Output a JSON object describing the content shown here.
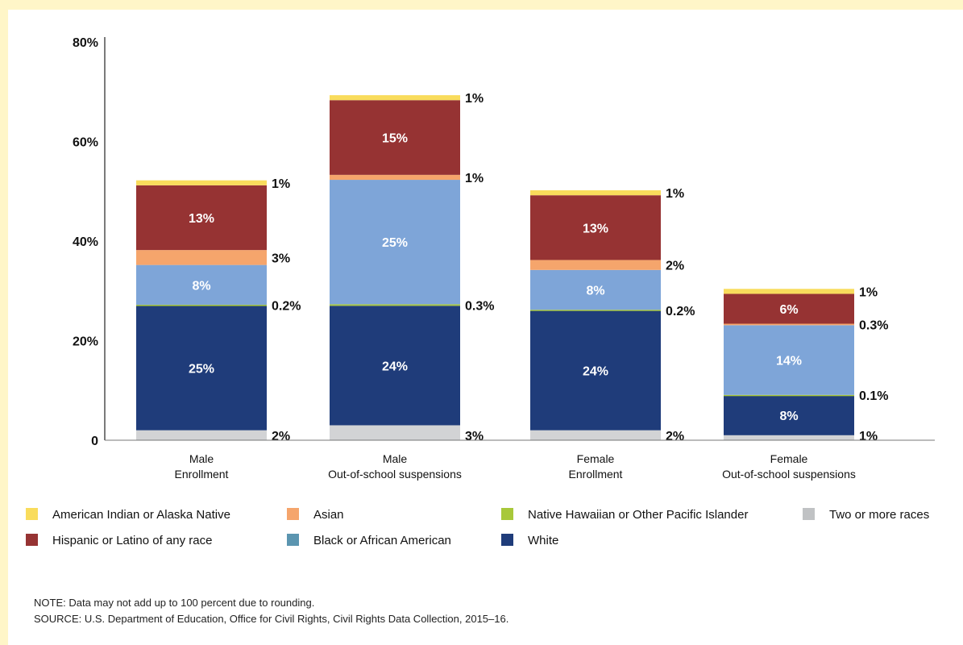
{
  "chart_data": {
    "type": "bar",
    "stacked": true,
    "yaxis": {
      "ylim": [
        0,
        80
      ],
      "ticks": [
        0,
        20,
        40,
        60,
        80
      ],
      "tick_labels": [
        "0",
        "20%",
        "40%",
        "60%",
        "80%"
      ]
    },
    "categories": [
      [
        "Male",
        "Enrollment"
      ],
      [
        "Male",
        "Out-of-school suspensions"
      ],
      [
        "Female",
        "Enrollment"
      ],
      [
        "Female",
        "Out-of-school suspensions"
      ]
    ],
    "series": [
      {
        "name": "Two or more races",
        "color": "#d2d3d5",
        "values": [
          2,
          3,
          2,
          1
        ],
        "labels": [
          "2%",
          "3%",
          "2%",
          "1%"
        ],
        "label_pos": "outside"
      },
      {
        "name": "White",
        "color": "#1f3c7a",
        "values": [
          25,
          24,
          24,
          8
        ],
        "labels": [
          "25%",
          "24%",
          "24%",
          "8%"
        ],
        "label_pos": "inside"
      },
      {
        "name": "Native Hawaiian or Other Pacific Islander",
        "color": "#a8c83a",
        "values": [
          0.2,
          0.3,
          0.2,
          0.1
        ],
        "labels": [
          "0.2%",
          "0.3%",
          "0.2%",
          "0.1%"
        ],
        "label_pos": "outside"
      },
      {
        "name": "Black or African American",
        "color": "#7ea5d8",
        "values": [
          8,
          25,
          8,
          14
        ],
        "labels": [
          "8%",
          "25%",
          "8%",
          "14%"
        ],
        "label_pos": "inside"
      },
      {
        "name": "Asian",
        "color": "#f5a56c",
        "values": [
          3,
          1,
          2,
          0.3
        ],
        "labels": [
          "3%",
          "1%",
          "2%",
          "0.3%"
        ],
        "label_pos": "outside"
      },
      {
        "name": "Hispanic or Latino of any race",
        "color": "#963333",
        "values": [
          13,
          15,
          13,
          6
        ],
        "labels": [
          "13%",
          "15%",
          "13%",
          "6%"
        ],
        "label_pos": "inside"
      },
      {
        "name": "American Indian or Alaska Native",
        "color": "#f9dc5c",
        "values": [
          1,
          1,
          1,
          1
        ],
        "labels": [
          "1%",
          "1%",
          "1%",
          "1%"
        ],
        "label_pos": "outside"
      }
    ],
    "legend": {
      "placement": "bottom",
      "rows": [
        [
          {
            "label": "American Indian or Alaska Native",
            "color": "#f9dc5c"
          },
          {
            "label": "Asian",
            "color": "#f5a56c"
          },
          {
            "label": "Native Hawaiian or Other Pacific Islander",
            "color": "#a8c83a"
          },
          {
            "label": "Two or more races",
            "color": "#c0c2c4"
          }
        ],
        [
          {
            "label": "Hispanic or Latino of any race",
            "color": "#963333"
          },
          {
            "label": "Black or African American",
            "color": "#5b95b0"
          },
          {
            "label": "White",
            "color": "#1f3c7a"
          }
        ]
      ]
    }
  },
  "notes": {
    "note": "NOTE: Data may not add up to 100 percent due to rounding.",
    "source": "SOURCE: U.S. Department of Education, Office for Civil Rights, Civil Rights Data Collection, 2015–16."
  }
}
